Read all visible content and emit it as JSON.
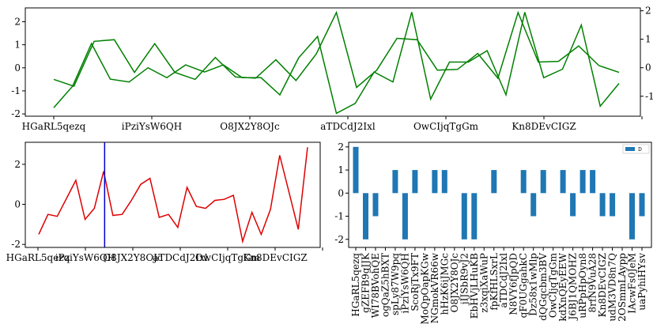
{
  "chart_data": [
    {
      "type": "line",
      "title": "",
      "xlabel": "",
      "ylabel": "",
      "tick_labels": [
        "HGaRL5qezq",
        "iPziYsW6QH",
        "O8JX2Y8OJc",
        "aTDCdJ2Ixl",
        "OwCIjqTgGm",
        "Kn8DEvCIGZ"
      ],
      "ylim_left": [
        -2.1,
        2.6
      ],
      "ylim_right": [
        -1.7,
        2.1
      ],
      "yticks_left": [
        -2,
        -1,
        0,
        1,
        2
      ],
      "yticks_right": [
        -1,
        0,
        1,
        2
      ],
      "series": [
        {
          "name": "left",
          "axis": "left",
          "color": "#008000",
          "values": [
            -0.5,
            -0.8,
            1.15,
            1.22,
            -0.2,
            1.05,
            -0.2,
            -0.5,
            0.45,
            -0.4,
            -0.45,
            0.35,
            -0.55,
            0.6,
            2.4,
            -0.85,
            -0.1,
            1.28,
            1.22,
            -0.1,
            -0.07,
            0.62,
            -0.45,
            2.4,
            0.25,
            0.28,
            0.95,
            0.1,
            -0.2
          ]
        },
        {
          "name": "right",
          "axis": "right",
          "color": "#008000",
          "values": [
            -1.4,
            -0.65,
            0.85,
            -0.4,
            -0.5,
            0.0,
            -0.35,
            0.1,
            -0.15,
            0.1,
            -0.35,
            -0.35,
            -0.95,
            0.35,
            1.1,
            -1.6,
            -1.25,
            -0.15,
            -0.5,
            1.95,
            -1.1,
            0.2,
            0.2,
            0.6,
            -0.95,
            1.95,
            -0.35,
            -0.05,
            1.5,
            -1.35,
            -0.55
          ]
        }
      ]
    },
    {
      "type": "line",
      "title": "",
      "xlabel": "",
      "ylabel": "",
      "tick_labels": [
        "HGaRL5qezq",
        "iPziYsW6QH",
        "O8JX2Y8OJc",
        "aTDCdJ2Ixl",
        "OwCIjqTgGm",
        "Kn8DEvCIGZ"
      ],
      "ylim": [
        -2.15,
        3.1
      ],
      "yticks": [
        -2,
        0,
        2
      ],
      "vline_at_index": 6,
      "vline_color": "#0000cc",
      "series": [
        {
          "name": "data",
          "color": "#dd0000",
          "values": [
            -1.5,
            -0.5,
            -0.6,
            0.3,
            1.2,
            -0.75,
            -0.2,
            1.65,
            -0.55,
            -0.5,
            0.2,
            1.0,
            1.3,
            -0.65,
            -0.5,
            -1.15,
            0.85,
            -0.1,
            -0.2,
            0.2,
            0.25,
            0.45,
            -1.85,
            -0.4,
            -1.5,
            -0.25,
            2.45,
            0.6,
            -1.25,
            2.85
          ]
        }
      ]
    },
    {
      "type": "bar",
      "title": "",
      "xlabel": "",
      "ylabel": "",
      "legend": {
        "labels": [
          "D"
        ],
        "position": "top-right"
      },
      "ylim": [
        -2.35,
        2.2
      ],
      "yticks": [
        -2,
        -1,
        0,
        1,
        2
      ],
      "color": "#1f77b4",
      "categories": [
        "HGaRL5qezq",
        "gZEFB9gJJK",
        "WI78BVohQE",
        "ogQaZ5hBXT",
        "spLy87W9pq",
        "iPziYsW6QH",
        "ScoRjTx9FT",
        "MoQpOapKGw",
        "NGmokVR66w",
        "hHzK6iJMGc",
        "O8JX2Y8OJc",
        "jIJSbR9vJ2",
        "EbHVjLHuKB",
        "z3xqiXaWuP",
        "fpKfHLSxrL",
        "aTDCdJ2Ixl",
        "N8VY6fJpQD",
        "qF0UGgahkC",
        "Dz58x1wMlp",
        "dQGqcbm3BV",
        "OwCIjqTgGm",
        "kdXnQEyEEW",
        "J6BJ1QMOHZ",
        "uRPpHpOyn8",
        "8rfN9VuA28",
        "Kn8DEvCIGZ",
        "udM3VD8n7Q",
        "2OSmmLAypp",
        "IAcwFs0JeM",
        "uaPyhiHYsv"
      ],
      "values": [
        2,
        -2,
        -1,
        0,
        1,
        -2,
        1,
        0,
        1,
        1,
        0,
        -2,
        -2,
        0,
        1,
        0,
        0,
        1,
        -1,
        1,
        0,
        1,
        -1,
        1,
        1,
        -1,
        -1,
        0,
        -2,
        -1
      ]
    }
  ]
}
